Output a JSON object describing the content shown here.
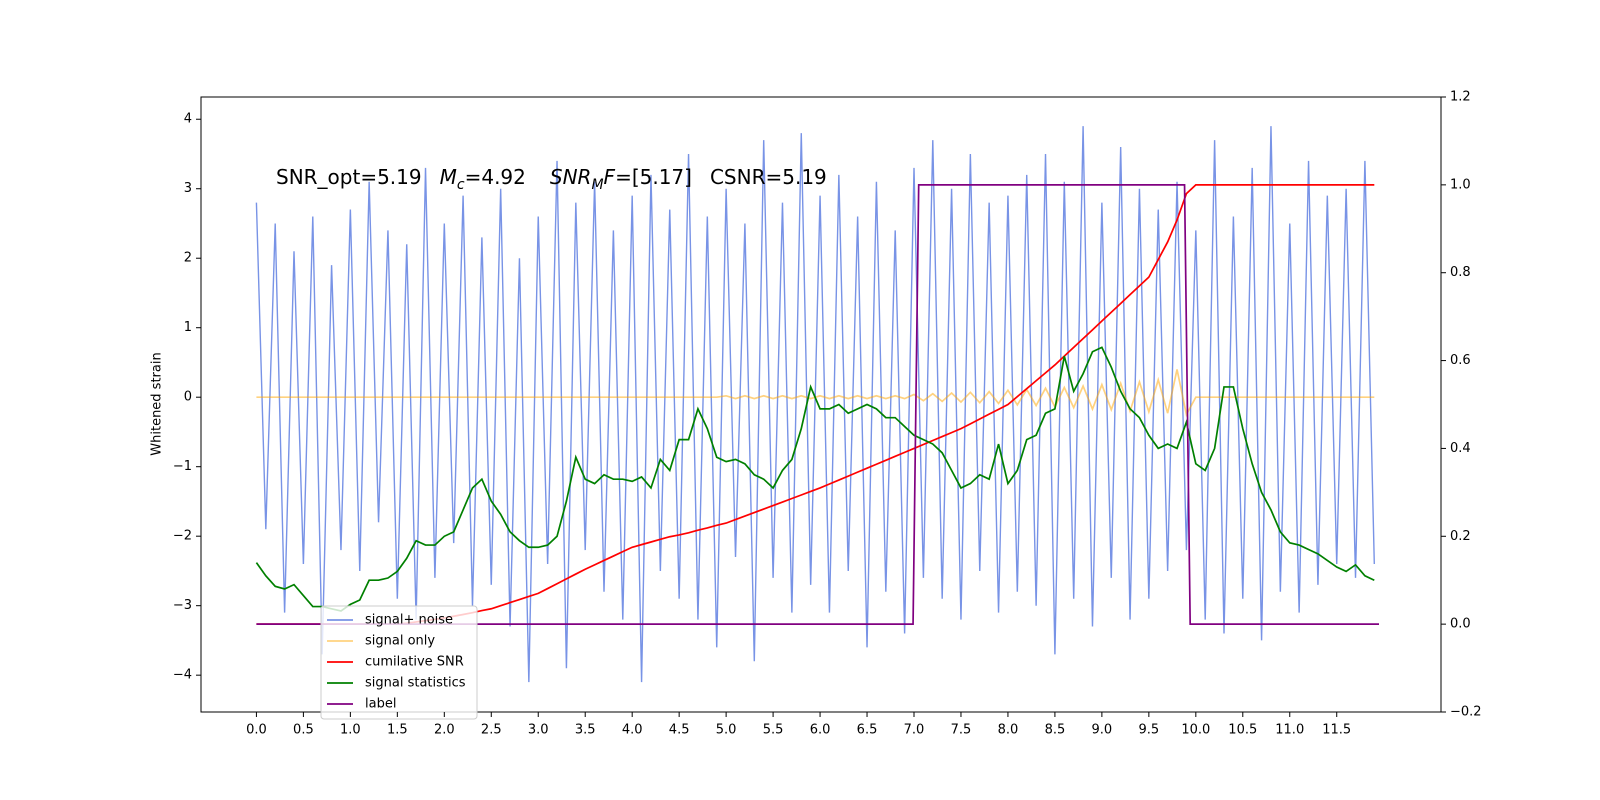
{
  "chart_data": {
    "type": "line",
    "ylabel": "Whitened strain",
    "annotation": [
      "SNR_opt=5.19",
      "M",
      "c",
      "=4.92",
      "SNR",
      "M",
      "F",
      "=[5.17]",
      "CSNR=5.19"
    ],
    "xlim": [
      -0.59,
      12.61
    ],
    "ylim": [
      -4.53,
      4.32
    ],
    "y2lim": [
      -0.2,
      1.2
    ],
    "xticks": [
      {
        "value": 0,
        "label": "0.0"
      },
      0.5,
      {
        "value": 1,
        "label": "1.0"
      },
      1.5,
      {
        "value": 2,
        "label": "2.0"
      },
      2.5,
      {
        "value": 3,
        "label": "3.0"
      },
      3.5,
      {
        "value": 4,
        "label": "4.0"
      },
      4.5,
      {
        "value": 5,
        "label": "5.0"
      },
      5.5,
      {
        "value": 6,
        "label": "6.0"
      },
      6.5,
      {
        "value": 7,
        "label": "7.0"
      },
      7.5,
      {
        "value": 8,
        "label": "8.0"
      },
      8.5,
      {
        "value": 9,
        "label": "9.0"
      },
      9.5,
      {
        "value": 10,
        "label": "10.0"
      },
      10.5,
      {
        "value": 11,
        "label": "11.0"
      },
      11.5
    ],
    "yticks": [
      {
        "value": -4,
        "label": "−4"
      },
      {
        "value": -3,
        "label": "−3"
      },
      {
        "value": -2,
        "label": "−2"
      },
      {
        "value": -1,
        "label": "−1"
      },
      0,
      1,
      2,
      3,
      4
    ],
    "y2ticks": [
      {
        "value": -0.2,
        "label": "−0.2"
      },
      {
        "value": 0,
        "label": "0.0"
      },
      0.2,
      0.4,
      0.6,
      0.8,
      {
        "value": 1,
        "label": "1.0"
      },
      1.2
    ],
    "legend": "lower left",
    "x": [
      0.0,
      0.1,
      0.2,
      0.3,
      0.4,
      0.5,
      0.6,
      0.7,
      0.8,
      0.9,
      1.0,
      1.1,
      1.2,
      1.3,
      1.4,
      1.5,
      1.6,
      1.7,
      1.8,
      1.9,
      2.0,
      2.1,
      2.2,
      2.3,
      2.4,
      2.5,
      2.6,
      2.7,
      2.8,
      2.9,
      3.0,
      3.1,
      3.2,
      3.3,
      3.4,
      3.5,
      3.6,
      3.7,
      3.8,
      3.9,
      4.0,
      4.1,
      4.2,
      4.3,
      4.4,
      4.5,
      4.6,
      4.7,
      4.8,
      4.9,
      5.0,
      5.1,
      5.2,
      5.3,
      5.4,
      5.5,
      5.6,
      5.7,
      5.8,
      5.9,
      6.0,
      6.1,
      6.2,
      6.3,
      6.4,
      6.5,
      6.6,
      6.7,
      6.8,
      6.9,
      7.0,
      7.1,
      7.2,
      7.3,
      7.4,
      7.5,
      7.6,
      7.7,
      7.8,
      7.9,
      8.0,
      8.1,
      8.2,
      8.3,
      8.4,
      8.5,
      8.6,
      8.7,
      8.8,
      8.9,
      9.0,
      9.1,
      9.2,
      9.3,
      9.4,
      9.5,
      9.6,
      9.7,
      9.8,
      9.9,
      10.0,
      10.1,
      10.2,
      10.3,
      10.4,
      10.5,
      10.6,
      10.7,
      10.8,
      10.9,
      11.0,
      11.1,
      11.2,
      11.3,
      11.4,
      11.5,
      11.6,
      11.7,
      11.8,
      11.9
    ],
    "series": [
      {
        "name": "signal+ noise",
        "color": "#7893e6",
        "axis": "y",
        "values": [
          2.8,
          -1.9,
          2.5,
          -3.1,
          2.1,
          -2.4,
          2.6,
          -3.7,
          1.9,
          -2.2,
          2.7,
          -2.5,
          3.1,
          -1.8,
          2.4,
          -2.9,
          2.2,
          -3.2,
          3.3,
          -2.6,
          2.5,
          -2.1,
          2.9,
          -3.0,
          2.3,
          -2.7,
          3.0,
          -3.3,
          2.0,
          -4.1,
          2.6,
          -2.4,
          3.4,
          -3.9,
          2.8,
          -2.2,
          3.1,
          -2.8,
          2.4,
          -3.2,
          2.9,
          -4.1,
          3.2,
          -2.5,
          2.7,
          -2.9,
          3.5,
          -3.2,
          2.6,
          -3.6,
          3.0,
          -2.3,
          2.5,
          -3.8,
          3.7,
          -2.6,
          2.8,
          -3.1,
          3.8,
          -2.7,
          2.9,
          -3.1,
          3.2,
          -2.5,
          2.6,
          -3.6,
          3.1,
          -2.8,
          2.4,
          -3.4,
          3.3,
          -2.6,
          3.7,
          -2.9,
          3.0,
          -3.2,
          3.5,
          -2.5,
          2.8,
          -3.1,
          2.9,
          -2.8,
          3.2,
          -3.0,
          3.5,
          -3.7,
          3.1,
          -2.9,
          3.9,
          -3.3,
          2.8,
          -2.6,
          3.6,
          -3.2,
          3.0,
          -2.9,
          2.7,
          -2.5,
          3.1,
          -2.2,
          2.4,
          -3.2,
          3.7,
          -3.4,
          2.6,
          -2.9,
          3.3,
          -3.5,
          3.9,
          -2.8,
          2.5,
          -3.1,
          3.4,
          -2.7,
          2.9,
          -2.4,
          3.0,
          -2.6,
          3.4,
          -2.4
        ]
      },
      {
        "name": "signal only",
        "color": "#ffa500",
        "axis": "y",
        "values": [
          0,
          0,
          0,
          0,
          0,
          0,
          0,
          0,
          0,
          0,
          0,
          0,
          0,
          0,
          0,
          0,
          0,
          0,
          0,
          0,
          0,
          0,
          0,
          0,
          0,
          0,
          0,
          0,
          0,
          0,
          0,
          0,
          0,
          0,
          0,
          0,
          0,
          0,
          0,
          0,
          0,
          0,
          0,
          0,
          0,
          0,
          0,
          0,
          0,
          0,
          0.02,
          -0.02,
          0.02,
          -0.02,
          0.02,
          -0.02,
          0.02,
          -0.02,
          0.02,
          -0.02,
          0.02,
          -0.02,
          0.02,
          -0.02,
          0.02,
          -0.02,
          0.02,
          -0.02,
          0.02,
          -0.02,
          0.04,
          -0.05,
          0.05,
          -0.06,
          0.06,
          -0.07,
          0.07,
          -0.08,
          0.08,
          -0.09,
          0.1,
          -0.11,
          0.11,
          -0.12,
          0.13,
          -0.14,
          0.14,
          -0.15,
          0.16,
          -0.17,
          0.18,
          -0.18,
          0.2,
          -0.2,
          0.22,
          -0.21,
          0.25,
          -0.23,
          0.4,
          -0.25,
          0,
          0,
          0,
          0,
          0,
          0,
          0,
          0,
          0,
          0,
          0,
          0,
          0,
          0,
          0,
          0,
          0,
          0,
          0,
          0
        ]
      },
      {
        "name": "cumilative SNR",
        "color": "#ff0000",
        "axis": "y2",
        "values": [
          0,
          0,
          0,
          0,
          0,
          0,
          0,
          0,
          0,
          0,
          0,
          0,
          0,
          0,
          0,
          0,
          0.002,
          0.005,
          0.008,
          0.011,
          0.014,
          0.018,
          0.022,
          0.026,
          0.031,
          0.035,
          0.042,
          0.049,
          0.056,
          0.063,
          0.07,
          0.081,
          0.092,
          0.103,
          0.114,
          0.125,
          0.135,
          0.145,
          0.155,
          0.165,
          0.175,
          0.181,
          0.187,
          0.193,
          0.199,
          0.203,
          0.208,
          0.214,
          0.219,
          0.225,
          0.23,
          0.238,
          0.246,
          0.254,
          0.262,
          0.27,
          0.278,
          0.286,
          0.294,
          0.302,
          0.31,
          0.319,
          0.328,
          0.337,
          0.346,
          0.355,
          0.364,
          0.373,
          0.382,
          0.391,
          0.4,
          0.409,
          0.418,
          0.427,
          0.436,
          0.445,
          0.456,
          0.467,
          0.478,
          0.489,
          0.5,
          0.518,
          0.536,
          0.554,
          0.572,
          0.59,
          0.61,
          0.63,
          0.65,
          0.67,
          0.69,
          0.71,
          0.73,
          0.75,
          0.77,
          0.79,
          0.83,
          0.87,
          0.92,
          0.98,
          1,
          1,
          1,
          1,
          1,
          1,
          1,
          1,
          1,
          1,
          1,
          1,
          1,
          1,
          1,
          1,
          1,
          1,
          1,
          1
        ]
      },
      {
        "name": "signal statistics",
        "color": "#008000",
        "axis": "y2",
        "values": [
          0.14,
          0.11,
          0.086,
          0.08,
          0.09,
          0.065,
          0.04,
          0.04,
          0.035,
          0.03,
          0.045,
          0.055,
          0.1,
          0.1,
          0.105,
          0.12,
          0.15,
          0.19,
          0.18,
          0.18,
          0.2,
          0.21,
          0.26,
          0.31,
          0.33,
          0.28,
          0.25,
          0.21,
          0.19,
          0.175,
          0.175,
          0.18,
          0.2,
          0.28,
          0.38,
          0.33,
          0.32,
          0.34,
          0.33,
          0.33,
          0.325,
          0.335,
          0.31,
          0.375,
          0.35,
          0.42,
          0.42,
          0.49,
          0.445,
          0.38,
          0.37,
          0.375,
          0.365,
          0.34,
          0.33,
          0.31,
          0.35,
          0.375,
          0.445,
          0.54,
          0.49,
          0.49,
          0.5,
          0.48,
          0.49,
          0.5,
          0.49,
          0.47,
          0.47,
          0.45,
          0.43,
          0.42,
          0.41,
          0.39,
          0.35,
          0.31,
          0.32,
          0.34,
          0.33,
          0.41,
          0.32,
          0.35,
          0.42,
          0.43,
          0.48,
          0.49,
          0.61,
          0.53,
          0.57,
          0.62,
          0.63,
          0.585,
          0.53,
          0.49,
          0.47,
          0.43,
          0.4,
          0.41,
          0.4,
          0.46,
          0.365,
          0.35,
          0.4,
          0.54,
          0.54,
          0.445,
          0.365,
          0.3,
          0.26,
          0.21,
          0.185,
          0.18,
          0.17,
          0.16,
          0.145,
          0.13,
          0.12,
          0.135,
          0.11,
          0.1
        ]
      },
      {
        "name": "label",
        "color": "#800080",
        "axis": "y2",
        "x": [
          0.0,
          6.99,
          7.05,
          9.88,
          9.94,
          11.95
        ],
        "values": [
          0,
          0,
          1,
          1,
          0,
          0
        ]
      }
    ]
  }
}
